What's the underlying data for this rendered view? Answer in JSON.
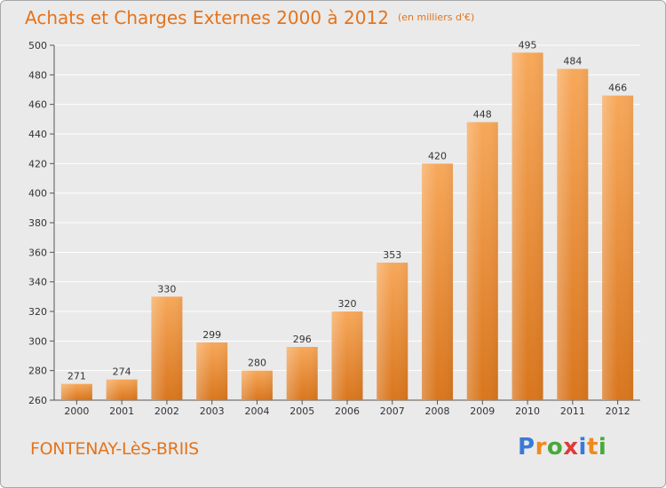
{
  "title": "Achats et Charges Externes 2000 à 2012",
  "subtitle": "(en milliers d'€)",
  "commune": "FONTENAY-LèS-BRIIS",
  "brand": {
    "p": "P",
    "r": "r",
    "o": "o",
    "x": "x",
    "i1": "i",
    "t": "t",
    "i2": "i"
  },
  "colors": {
    "bar_light": "#f7a85a",
    "bar_dark": "#d9761e",
    "accent": "#e4741c"
  },
  "chart_data": {
    "type": "bar",
    "categories": [
      "2000",
      "2001",
      "2002",
      "2003",
      "2004",
      "2005",
      "2006",
      "2007",
      "2008",
      "2009",
      "2010",
      "2011",
      "2012"
    ],
    "values": [
      271,
      274,
      330,
      299,
      280,
      296,
      320,
      353,
      420,
      448,
      495,
      484,
      466
    ],
    "ylim": [
      260,
      500
    ],
    "yticks": [
      260,
      280,
      300,
      320,
      340,
      360,
      380,
      400,
      420,
      440,
      460,
      480,
      500
    ],
    "grid": true
  }
}
